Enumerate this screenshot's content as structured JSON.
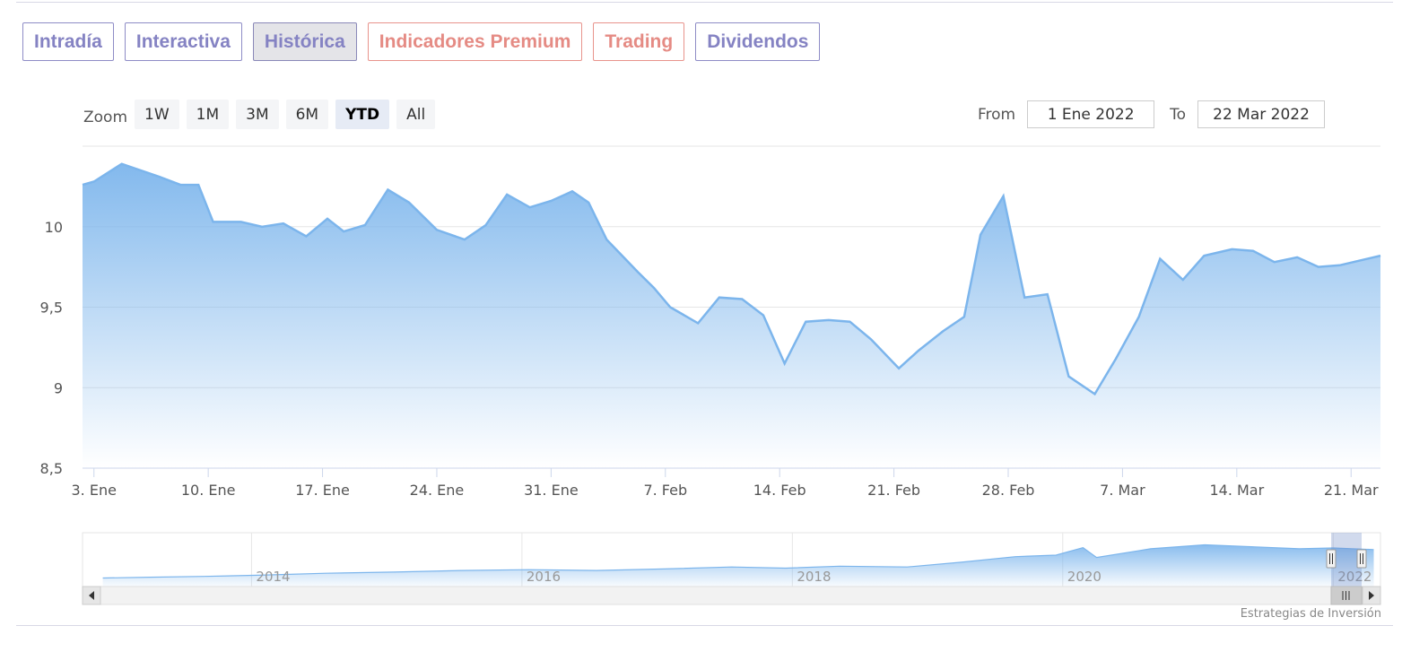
{
  "tabs": [
    {
      "label": "Intradía",
      "style": "normal"
    },
    {
      "label": "Interactiva",
      "style": "normal"
    },
    {
      "label": "Histórica",
      "style": "active"
    },
    {
      "label": "Indicadores Premium",
      "style": "premium"
    },
    {
      "label": "Trading",
      "style": "premium"
    },
    {
      "label": "Dividendos",
      "style": "normal"
    }
  ],
  "range_selector": {
    "zoom_label": "Zoom",
    "buttons": [
      {
        "label": "1W",
        "active": false
      },
      {
        "label": "1M",
        "active": false
      },
      {
        "label": "3M",
        "active": false
      },
      {
        "label": "6M",
        "active": false
      },
      {
        "label": "YTD",
        "active": true
      },
      {
        "label": "All",
        "active": false
      }
    ],
    "from_label": "From",
    "from_value": "1 Ene 2022",
    "to_label": "To",
    "to_value": "22 Mar 2022"
  },
  "credits": "Estrategias de Inversión",
  "colors": {
    "line": "#7cb5ec",
    "fill_top": "#7cb5ec",
    "tab_text": "#8583c3",
    "premium_text": "#e58b84"
  },
  "chart_data": {
    "type": "area",
    "title": "",
    "xlabel": "",
    "ylabel": "",
    "ylim": [
      8.5,
      10.5
    ],
    "y_ticks": [
      {
        "value": 8.5,
        "label": "8,5"
      },
      {
        "value": 9,
        "label": "9"
      },
      {
        "value": 9.5,
        "label": "9,5"
      },
      {
        "value": 10,
        "label": "10"
      }
    ],
    "x_ticks": [
      {
        "day": 3,
        "label": "3. Ene"
      },
      {
        "day": 10,
        "label": "10. Ene"
      },
      {
        "day": 17,
        "label": "17. Ene"
      },
      {
        "day": 24,
        "label": "24. Ene"
      },
      {
        "day": 31,
        "label": "31. Ene"
      },
      {
        "day": 38,
        "label": "7. Feb"
      },
      {
        "day": 45,
        "label": "14. Feb"
      },
      {
        "day": 52,
        "label": "21. Feb"
      },
      {
        "day": 59,
        "label": "28. Feb"
      },
      {
        "day": 66,
        "label": "7. Mar"
      },
      {
        "day": 73,
        "label": "14. Mar"
      },
      {
        "day": 80,
        "label": "21. Mar"
      }
    ],
    "x_range": [
      2.3,
      81.8
    ],
    "series": [
      {
        "points": [
          [
            2.3,
            10.26
          ],
          [
            3,
            10.28
          ],
          [
            4.7,
            10.39
          ],
          [
            7,
            10.31
          ],
          [
            8.3,
            10.26
          ],
          [
            9.4,
            10.26
          ],
          [
            10.3,
            10.03
          ],
          [
            12,
            10.03
          ],
          [
            13.3,
            10.0
          ],
          [
            14.6,
            10.02
          ],
          [
            16,
            9.94
          ],
          [
            17.3,
            10.05
          ],
          [
            18.3,
            9.97
          ],
          [
            19.6,
            10.01
          ],
          [
            21,
            10.23
          ],
          [
            22.3,
            10.15
          ],
          [
            24,
            9.98
          ],
          [
            25.7,
            9.92
          ],
          [
            27,
            10.01
          ],
          [
            28.3,
            10.2
          ],
          [
            29.7,
            10.12
          ],
          [
            31,
            10.16
          ],
          [
            32.3,
            10.22
          ],
          [
            33.3,
            10.15
          ],
          [
            34.4,
            9.92
          ],
          [
            36.3,
            9.72
          ],
          [
            37.3,
            9.62
          ],
          [
            38.3,
            9.5
          ],
          [
            40,
            9.4
          ],
          [
            41.3,
            9.56
          ],
          [
            42.7,
            9.55
          ],
          [
            44,
            9.45
          ],
          [
            45.3,
            9.15
          ],
          [
            46.6,
            9.41
          ],
          [
            48,
            9.42
          ],
          [
            49.3,
            9.41
          ],
          [
            50.6,
            9.3
          ],
          [
            52.3,
            9.12
          ],
          [
            53.5,
            9.23
          ],
          [
            55,
            9.35
          ],
          [
            56.3,
            9.44
          ],
          [
            57.3,
            9.95
          ],
          [
            58.7,
            10.19
          ],
          [
            60,
            9.56
          ],
          [
            61.4,
            9.58
          ],
          [
            62.7,
            9.07
          ],
          [
            64.3,
            8.96
          ],
          [
            65.6,
            9.18
          ],
          [
            67,
            9.44
          ],
          [
            68.3,
            9.8
          ],
          [
            69.7,
            9.67
          ],
          [
            71,
            9.82
          ],
          [
            72.7,
            9.86
          ],
          [
            74,
            9.85
          ],
          [
            75.3,
            9.78
          ],
          [
            76.7,
            9.81
          ],
          [
            78,
            9.75
          ],
          [
            79.3,
            9.76
          ],
          [
            81.8,
            9.82
          ]
        ]
      }
    ],
    "navigator": {
      "labels": [
        "2014",
        "2016",
        "2018",
        "2020",
        "2022"
      ],
      "series": [
        [
          2012.85,
          0.08
        ],
        [
          2013.2,
          0.1
        ],
        [
          2013.6,
          0.12
        ],
        [
          2014.0,
          0.15
        ],
        [
          2014.5,
          0.2
        ],
        [
          2015.0,
          0.23
        ],
        [
          2015.5,
          0.27
        ],
        [
          2016.0,
          0.29
        ],
        [
          2016.5,
          0.27
        ],
        [
          2017.0,
          0.31
        ],
        [
          2017.5,
          0.36
        ],
        [
          2017.9,
          0.33
        ],
        [
          2018.3,
          0.38
        ],
        [
          2018.8,
          0.36
        ],
        [
          2019.2,
          0.48
        ],
        [
          2019.6,
          0.62
        ],
        [
          2019.9,
          0.66
        ],
        [
          2020.1,
          0.85
        ],
        [
          2020.2,
          0.6
        ],
        [
          2020.6,
          0.82
        ],
        [
          2021.0,
          0.92
        ],
        [
          2021.3,
          0.88
        ],
        [
          2021.7,
          0.82
        ],
        [
          2021.95,
          0.84
        ],
        [
          2022.25,
          0.8
        ]
      ],
      "x_range": [
        2012.7,
        2022.3
      ]
    }
  }
}
